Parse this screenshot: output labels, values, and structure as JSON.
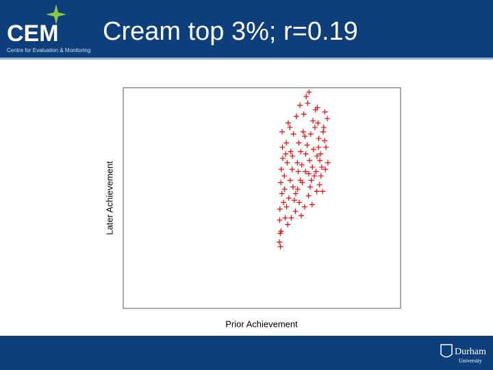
{
  "slide": {
    "title": "Cream top 3%; r=0.19",
    "logo": "CEM",
    "logo_subtitle": "Centre for Evaluation & Monitoring",
    "footer_logo": "Durham",
    "footer_logo_sub": "University"
  },
  "chart_data": {
    "type": "scatter",
    "x_label": "Prior Achievement",
    "y_label": "Later Achievement",
    "xlim": [
      0,
      100
    ],
    "ylim": [
      0,
      100
    ],
    "color": "#ff0000",
    "x": [
      56.5,
      57.2,
      58.1,
      59.3,
      60.4,
      61.2,
      62.8,
      63.5,
      64.9,
      65.7,
      66.3,
      67.8,
      68.4,
      69.9,
      70.5,
      71.6,
      72.3,
      73.1,
      56.9,
      58.4,
      59.7,
      60.9,
      62.1,
      63.3,
      64.6,
      65.1,
      66.8,
      67.2,
      68.9,
      69.3,
      70.8,
      71.1,
      72.9,
      73.6,
      57.5,
      58.8,
      60.1,
      61.7,
      62.4,
      63.9,
      64.2,
      65.8,
      66.5,
      67.6,
      68.1,
      69.5,
      70.2,
      71.9,
      72.6,
      73.8,
      56.3,
      57.8,
      59.1,
      60.6,
      61.4,
      62.9,
      64.0,
      65.4,
      66.9,
      68.6,
      70.0,
      71.3,
      72.1,
      56.8,
      57.4,
      58.2,
      59.5,
      61.0,
      63.1,
      65.5,
      67.4,
      69.1,
      70.9,
      72.7,
      56.4,
      57.0,
      58.6,
      60.2,
      62.2,
      64.4,
      66.0,
      68.2,
      70.4,
      56.6,
      57.3,
      58.9,
      56.7,
      67.0,
      63.7,
      69.8
    ],
    "values": [
      45,
      52,
      60,
      38,
      71,
      55,
      66,
      48,
      80,
      62,
      74,
      58,
      85,
      69,
      77,
      64,
      82,
      73,
      35,
      41,
      50,
      63,
      44,
      75,
      57,
      88,
      51,
      67,
      60,
      90,
      56,
      70,
      63,
      86,
      68,
      75,
      82,
      49,
      87,
      58,
      42,
      70,
      93,
      79,
      47,
      62,
      84,
      53,
      76,
      66,
      30,
      48,
      66,
      41,
      79,
      54,
      71,
      46,
      61,
      72,
      91,
      60,
      80,
      57,
      73,
      54,
      84,
      69,
      62,
      78,
      55,
      82,
      67,
      89,
      40,
      63,
      70,
      58,
      52,
      65,
      96,
      64,
      73,
      34,
      80,
      46,
      28,
      98,
      92,
      53
    ]
  }
}
